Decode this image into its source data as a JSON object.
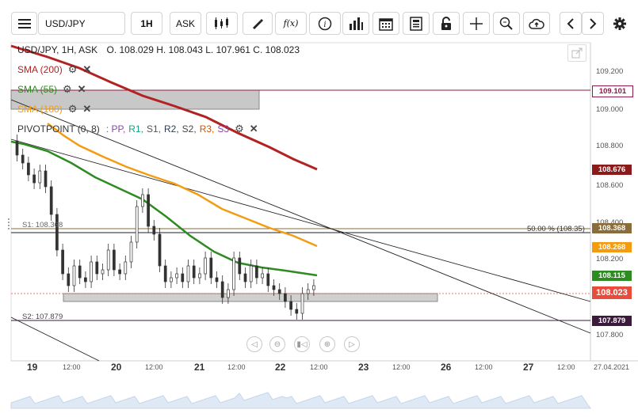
{
  "toolbar": {
    "menu_icon": "menu-icon",
    "symbol": "USD/JPY",
    "timeframe": "1H",
    "price_type": "ASK",
    "fx_label": "f(x)"
  },
  "chart": {
    "header": {
      "symbol": "USD/JPY, 1H, ASK",
      "ohlc": "O. 108.029 H. 108.043 L. 107.961 C. 108.023"
    },
    "indicators": [
      {
        "label": "SMA (200)",
        "color": "#b22222"
      },
      {
        "label": "SMA (55)",
        "color": "#2e8b22"
      },
      {
        "label": "SMA (100)",
        "color": "#f39c12"
      }
    ],
    "pivot": {
      "label": "PIVOTPOINT (0, 8)",
      "legend": [
        {
          "text": ": PP,",
          "color": "#8e44ad"
        },
        {
          "text": "R1,",
          "color": "#16a085"
        },
        {
          "text": "S1,",
          "color": "#555555"
        },
        {
          "text": "R2,",
          "color": "#2c3e50"
        },
        {
          "text": "S2,",
          "color": "#444444"
        },
        {
          "text": "R3,",
          "color": "#d35400"
        },
        {
          "text": "S3",
          "color": "#8e44ad"
        }
      ]
    },
    "s1_label": "S1: 108.368",
    "s2_label": "S2: 107.879",
    "fib_label": "50.00 % (108.35)",
    "price_axis": {
      "ticks": [
        "109.200",
        "109.000",
        "108.800",
        "108.600",
        "108.400",
        "108.200",
        "107.800"
      ],
      "labels": [
        {
          "value": "109.101",
          "bg": "#ffffff",
          "fg": "#8b1a4a"
        },
        {
          "value": "108.676",
          "bg": "#8b1a1a",
          "fg": "#ffffff"
        },
        {
          "value": "108.368",
          "bg": "#8a6d3b",
          "fg": "#ffffff"
        },
        {
          "value": "108.268",
          "bg": "#f39c12",
          "fg": "#ffffff"
        },
        {
          "value": "108.115",
          "bg": "#2e8b22",
          "fg": "#ffffff"
        },
        {
          "value": "108.023",
          "bg": "#e74c3c",
          "fg": "#ffffff"
        },
        {
          "value": "107.879",
          "bg": "#3b1a3b",
          "fg": "#ffffff"
        }
      ]
    },
    "time_axis": {
      "days": [
        "19",
        "20",
        "21",
        "22",
        "23",
        "26",
        "27"
      ],
      "times": [
        "12:00",
        "12:00",
        "12:00",
        "12:00",
        "12:00",
        "12:00",
        "12:00"
      ],
      "end_date": "27.04.2021"
    }
  }
}
